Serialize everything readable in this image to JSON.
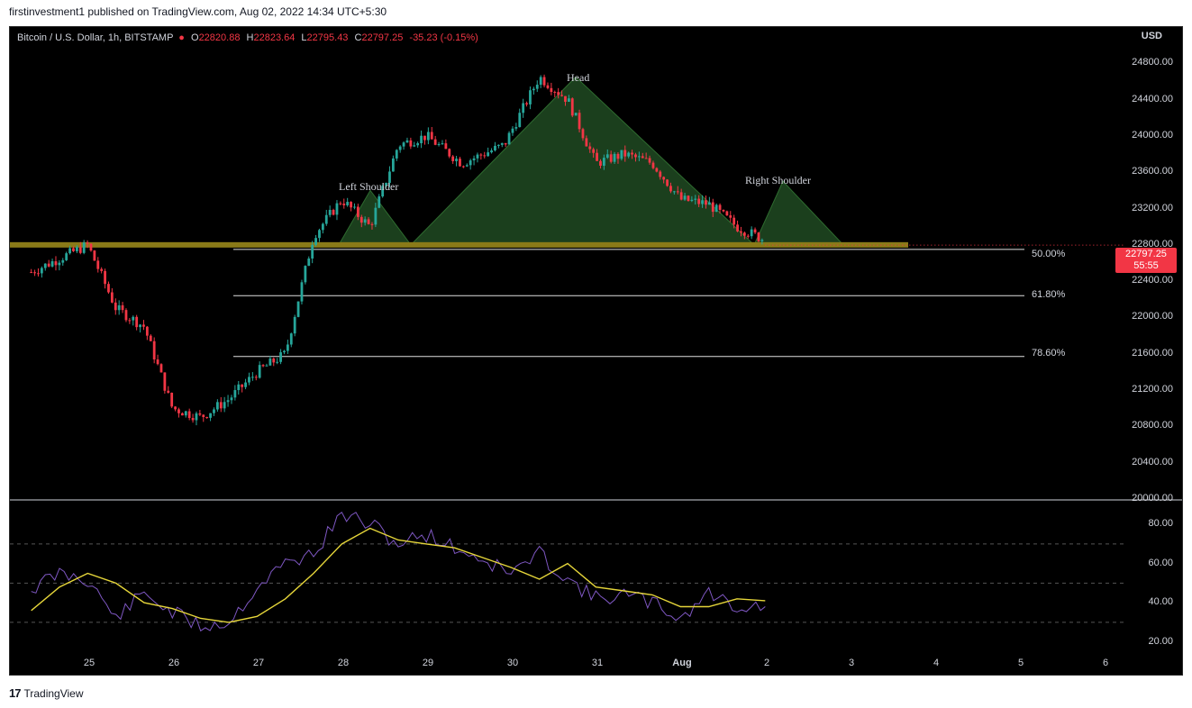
{
  "publish_line": "firstinvestment1 published on TradingView.com, Aug 02, 2022 14:34 UTC+5:30",
  "legend": {
    "symbol": "Bitcoin / U.S. Dollar, 1h, BITSTAMP",
    "open_key": "O",
    "open": "22820.88",
    "high_key": "H",
    "high": "22823.64",
    "low_key": "L",
    "low": "22795.43",
    "close_key": "C",
    "close": "22797.25",
    "change": "-35.23 (-0.15%)"
  },
  "currency": "USD",
  "price_tag": {
    "price": "22797.25",
    "countdown": "55:55"
  },
  "annotations": {
    "head": "Head",
    "left_shoulder": "Left Shoulder",
    "right_shoulder": "Right Shoulder"
  },
  "fib_labels": [
    "50.00%",
    "61.80%",
    "78.60%"
  ],
  "logo": {
    "mark": "17",
    "text": "TradingView"
  },
  "colors": {
    "up": "#26a69a",
    "down": "#f23645",
    "pattern_fill": "#1e4620",
    "pattern_stroke": "#2e6b2f",
    "neckline": "#8a7a18",
    "rsi": "#7e57c2",
    "rsi_ma": "#e6d63a"
  },
  "chart_data": [
    {
      "type": "candlestick",
      "title": "Bitcoin / U.S. Dollar, 1h, BITSTAMP",
      "y_ticks": [
        "20000.00",
        "20400.00",
        "20800.00",
        "21200.00",
        "21600.00",
        "22000.00",
        "22400.00",
        "22800.00",
        "23200.00",
        "23600.00",
        "24000.00",
        "24400.00",
        "24800.00"
      ],
      "ylim": [
        20000,
        25200
      ],
      "x_ticks": [
        "25",
        "26",
        "27",
        "28",
        "29",
        "30",
        "31",
        "Aug",
        "2",
        "3",
        "4",
        "5",
        "6"
      ],
      "price_path": [
        [
          "25",
          22500
        ],
        [
          "25",
          22650
        ],
        [
          "25",
          22800
        ],
        [
          "26",
          22100
        ],
        [
          "26",
          21900
        ],
        [
          "26",
          21000
        ],
        [
          "27",
          20900
        ],
        [
          "27",
          21100
        ],
        [
          "27",
          21400
        ],
        [
          "28",
          21600
        ],
        [
          "28",
          22900
        ],
        [
          "28",
          23300
        ],
        [
          "29",
          23000
        ],
        [
          "29",
          23900
        ],
        [
          "29",
          24000
        ],
        [
          "30",
          23700
        ],
        [
          "30",
          23900
        ],
        [
          "31",
          24650
        ],
        [
          "31",
          24400
        ],
        [
          "31",
          23700
        ],
        [
          "Aug",
          23800
        ],
        [
          "Aug",
          23700
        ],
        [
          "Aug",
          23300
        ],
        [
          "2",
          23250
        ],
        [
          "2",
          23000
        ],
        [
          "2",
          22850
        ]
      ],
      "last_price": 22797.25,
      "fibonacci": [
        {
          "label": "50.00%",
          "price": 22750
        },
        {
          "label": "61.80%",
          "price": 22240
        },
        {
          "label": "78.60%",
          "price": 21570
        }
      ],
      "neckline": 22800,
      "pattern": {
        "left_shoulder": {
          "peak_x": "28",
          "peak_y": 23400
        },
        "head": {
          "peak_x": "31",
          "peak_y": 24650
        },
        "right_shoulder": {
          "peak_x": "2",
          "peak_y": 23500
        }
      }
    },
    {
      "type": "line",
      "title": "RSI",
      "y_ticks": [
        "20.00",
        "40.00",
        "60.00",
        "80.00"
      ],
      "ylim": [
        12,
        92
      ],
      "levels": [
        70,
        50,
        30
      ],
      "series": [
        {
          "color": "#7e57c2",
          "x": [
            "25",
            "25",
            "25",
            "26",
            "26",
            "26",
            "27",
            "27",
            "27",
            "28",
            "28",
            "28",
            "29",
            "29",
            "29",
            "30",
            "30",
            "30",
            "31",
            "31",
            "31",
            "Aug",
            "Aug",
            "Aug",
            "2",
            "2",
            "2"
          ],
          "values": [
            47,
            55,
            52,
            32,
            45,
            35,
            28,
            30,
            48,
            60,
            65,
            85,
            80,
            70,
            75,
            68,
            62,
            55,
            65,
            52,
            42,
            44,
            40,
            32,
            45,
            38,
            38
          ]
        },
        {
          "color": "#e6d63a",
          "x": [
            "25",
            "25",
            "25",
            "26",
            "26",
            "26",
            "27",
            "27",
            "27",
            "28",
            "28",
            "28",
            "29",
            "29",
            "29",
            "30",
            "30",
            "30",
            "31",
            "31",
            "31",
            "Aug",
            "Aug",
            "Aug",
            "2",
            "2",
            "2"
          ],
          "values": [
            36,
            48,
            55,
            50,
            40,
            37,
            32,
            30,
            33,
            42,
            55,
            70,
            78,
            72,
            70,
            68,
            63,
            58,
            52,
            60,
            48,
            46,
            44,
            38,
            38,
            42,
            41
          ]
        }
      ]
    }
  ]
}
